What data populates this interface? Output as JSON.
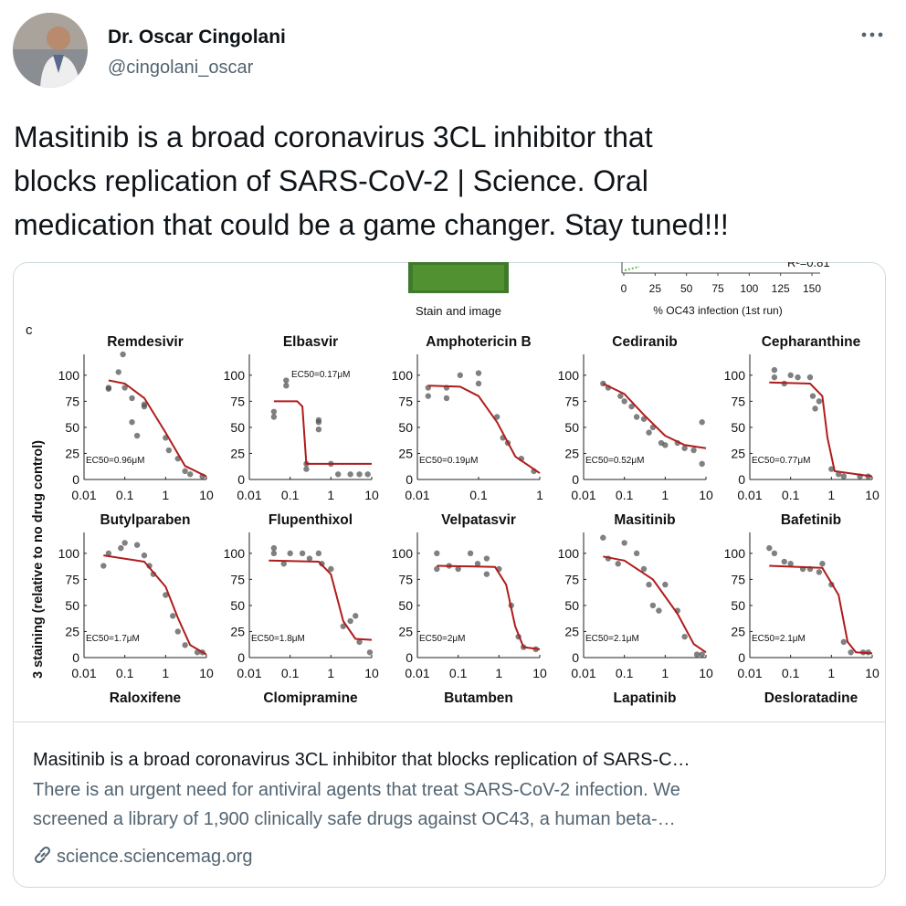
{
  "header": {
    "name": "Dr. Oscar Cingolani",
    "handle": "@cingolani_oscar"
  },
  "tweet": {
    "lines": [
      "Masitinib is a broad coronavirus 3CL inhibitor that",
      "blocks replication of SARS-CoV-2 | Science. Oral",
      "medication that could be a game changer. Stay tuned!!!"
    ]
  },
  "figure": {
    "top_caption": "Stain and image",
    "top_plot": {
      "ticks": [
        0,
        25,
        50,
        75,
        100,
        125,
        150
      ],
      "xlabel": "% OC43 infection (1st run)",
      "stat": "R²=0.81"
    },
    "panel_letter": "c",
    "ylabel": "3 staining (relative to no drug control)",
    "yticks": [
      0,
      25,
      50,
      75,
      100
    ],
    "ylim": [
      0,
      120
    ],
    "log_x": true,
    "panels": [
      {
        "title": "Remdesivir",
        "ec50": "EC50=0.96μM",
        "xlim": [
          0.01,
          10
        ],
        "xticks": [
          0.01,
          0.1,
          1,
          10
        ],
        "points": [
          [
            0.04,
            87
          ],
          [
            0.04,
            88
          ],
          [
            0.07,
            103
          ],
          [
            0.09,
            120
          ],
          [
            0.1,
            88
          ],
          [
            0.15,
            78
          ],
          [
            0.15,
            55
          ],
          [
            0.2,
            42
          ],
          [
            0.3,
            72
          ],
          [
            0.3,
            70
          ],
          [
            1,
            40
          ],
          [
            1.2,
            28
          ],
          [
            2,
            20
          ],
          [
            3,
            8
          ],
          [
            4,
            5
          ],
          [
            8,
            3
          ]
        ],
        "curve": [
          [
            0.04,
            95
          ],
          [
            0.1,
            92
          ],
          [
            0.3,
            78
          ],
          [
            1,
            45
          ],
          [
            3,
            13
          ],
          [
            10,
            3
          ]
        ]
      },
      {
        "title": "Elbasvir",
        "ec50": "EC50=0.17μM",
        "xlim": [
          0.01,
          10
        ],
        "xticks": [
          0.01,
          0.1,
          1,
          10
        ],
        "points": [
          [
            0.04,
            60
          ],
          [
            0.04,
            65
          ],
          [
            0.08,
            90
          ],
          [
            0.08,
            95
          ],
          [
            0.25,
            15
          ],
          [
            0.25,
            10
          ],
          [
            0.5,
            48
          ],
          [
            0.5,
            55
          ],
          [
            0.5,
            57
          ],
          [
            1,
            15
          ],
          [
            1.5,
            5
          ],
          [
            3,
            5
          ],
          [
            5,
            5
          ],
          [
            8,
            5
          ]
        ],
        "curve": [
          [
            0.04,
            75
          ],
          [
            0.15,
            75
          ],
          [
            0.2,
            70
          ],
          [
            0.25,
            15
          ],
          [
            10,
            15
          ]
        ]
      },
      {
        "title": "Amphotericin B",
        "ec50": "EC50=0.19μM",
        "xlim": [
          0.01,
          1
        ],
        "xticks": [
          0.01,
          0.1,
          1
        ],
        "points": [
          [
            0.015,
            80
          ],
          [
            0.015,
            88
          ],
          [
            0.03,
            88
          ],
          [
            0.03,
            78
          ],
          [
            0.05,
            100
          ],
          [
            0.1,
            102
          ],
          [
            0.1,
            92
          ],
          [
            0.2,
            60
          ],
          [
            0.25,
            40
          ],
          [
            0.3,
            35
          ],
          [
            0.5,
            20
          ],
          [
            0.8,
            8
          ]
        ],
        "curve": [
          [
            0.015,
            90
          ],
          [
            0.05,
            89
          ],
          [
            0.1,
            80
          ],
          [
            0.2,
            55
          ],
          [
            0.4,
            22
          ],
          [
            1,
            6
          ]
        ]
      },
      {
        "title": "Cediranib",
        "ec50": "EC50=0.52μM",
        "xlim": [
          0.01,
          10
        ],
        "xticks": [
          0.01,
          0.1,
          1,
          10
        ],
        "points": [
          [
            0.03,
            92
          ],
          [
            0.04,
            88
          ],
          [
            0.08,
            80
          ],
          [
            0.1,
            75
          ],
          [
            0.15,
            70
          ],
          [
            0.2,
            60
          ],
          [
            0.3,
            58
          ],
          [
            0.4,
            45
          ],
          [
            0.5,
            50
          ],
          [
            0.8,
            35
          ],
          [
            1,
            33
          ],
          [
            2,
            35
          ],
          [
            3,
            30
          ],
          [
            5,
            28
          ],
          [
            8,
            15
          ],
          [
            8,
            55
          ]
        ],
        "curve": [
          [
            0.03,
            92
          ],
          [
            0.1,
            82
          ],
          [
            0.3,
            62
          ],
          [
            1,
            42
          ],
          [
            3,
            33
          ],
          [
            10,
            30
          ]
        ]
      },
      {
        "title": "Cepharanthine",
        "ec50": "EC50=0.77μM",
        "xlim": [
          0.01,
          10
        ],
        "xticks": [
          0.01,
          0.1,
          1,
          10
        ],
        "points": [
          [
            0.04,
            105
          ],
          [
            0.04,
            98
          ],
          [
            0.07,
            92
          ],
          [
            0.1,
            100
          ],
          [
            0.15,
            98
          ],
          [
            0.3,
            98
          ],
          [
            0.35,
            80
          ],
          [
            0.4,
            68
          ],
          [
            0.5,
            75
          ],
          [
            1,
            10
          ],
          [
            1.5,
            5
          ],
          [
            2,
            3
          ],
          [
            5,
            3
          ],
          [
            8,
            3
          ]
        ],
        "curve": [
          [
            0.03,
            93
          ],
          [
            0.3,
            92
          ],
          [
            0.6,
            80
          ],
          [
            0.8,
            40
          ],
          [
            1.2,
            8
          ],
          [
            10,
            3
          ]
        ]
      },
      {
        "title": "Butylparaben",
        "ec50": "EC50=1.7μM",
        "xlim": [
          0.01,
          10
        ],
        "xticks": [
          0.01,
          0.1,
          1,
          10
        ],
        "points": [
          [
            0.03,
            88
          ],
          [
            0.04,
            100
          ],
          [
            0.08,
            105
          ],
          [
            0.1,
            110
          ],
          [
            0.2,
            108
          ],
          [
            0.3,
            98
          ],
          [
            0.4,
            88
          ],
          [
            0.5,
            80
          ],
          [
            1,
            60
          ],
          [
            1.5,
            40
          ],
          [
            2,
            25
          ],
          [
            3,
            12
          ],
          [
            6,
            5
          ],
          [
            8,
            5
          ]
        ],
        "curve": [
          [
            0.03,
            98
          ],
          [
            0.3,
            92
          ],
          [
            1,
            68
          ],
          [
            2,
            38
          ],
          [
            4,
            12
          ],
          [
            10,
            3
          ]
        ]
      },
      {
        "title": "Flupenthixol",
        "ec50": "EC50=1.8μM",
        "xlim": [
          0.01,
          10
        ],
        "xticks": [
          0.01,
          0.1,
          1,
          10
        ],
        "points": [
          [
            0.04,
            105
          ],
          [
            0.04,
            100
          ],
          [
            0.07,
            90
          ],
          [
            0.1,
            100
          ],
          [
            0.2,
            100
          ],
          [
            0.3,
            95
          ],
          [
            0.5,
            100
          ],
          [
            0.6,
            90
          ],
          [
            1,
            85
          ],
          [
            2,
            30
          ],
          [
            3,
            35
          ],
          [
            4,
            40
          ],
          [
            5,
            15
          ],
          [
            9,
            5
          ]
        ],
        "curve": [
          [
            0.03,
            93
          ],
          [
            0.5,
            92
          ],
          [
            1,
            80
          ],
          [
            2,
            35
          ],
          [
            4,
            18
          ],
          [
            10,
            17
          ]
        ]
      },
      {
        "title": "Velpatasvir",
        "ec50": "EC50=2μM",
        "xlim": [
          0.01,
          10
        ],
        "xticks": [
          0.01,
          0.1,
          1,
          10
        ],
        "points": [
          [
            0.03,
            100
          ],
          [
            0.03,
            85
          ],
          [
            0.06,
            88
          ],
          [
            0.1,
            85
          ],
          [
            0.2,
            100
          ],
          [
            0.3,
            90
          ],
          [
            0.5,
            80
          ],
          [
            0.5,
            95
          ],
          [
            1,
            85
          ],
          [
            2,
            50
          ],
          [
            3,
            20
          ],
          [
            4,
            10
          ],
          [
            8,
            8
          ]
        ],
        "curve": [
          [
            0.03,
            88
          ],
          [
            0.8,
            87
          ],
          [
            1.5,
            70
          ],
          [
            2.5,
            30
          ],
          [
            4,
            10
          ],
          [
            10,
            8
          ]
        ]
      },
      {
        "title": "Masitinib",
        "ec50": "EC50=2.1μM",
        "xlim": [
          0.01,
          10
        ],
        "xticks": [
          0.01,
          0.1,
          1,
          10
        ],
        "points": [
          [
            0.03,
            115
          ],
          [
            0.04,
            95
          ],
          [
            0.07,
            90
          ],
          [
            0.1,
            110
          ],
          [
            0.2,
            100
          ],
          [
            0.3,
            85
          ],
          [
            0.4,
            70
          ],
          [
            0.5,
            50
          ],
          [
            0.7,
            45
          ],
          [
            1,
            70
          ],
          [
            2,
            45
          ],
          [
            3,
            20
          ],
          [
            6,
            3
          ],
          [
            8,
            3
          ]
        ],
        "curve": [
          [
            0.03,
            97
          ],
          [
            0.1,
            93
          ],
          [
            0.5,
            75
          ],
          [
            2,
            42
          ],
          [
            5,
            13
          ],
          [
            10,
            5
          ]
        ]
      },
      {
        "title": "Bafetinib",
        "ec50": "EC50=2.1μM",
        "xlim": [
          0.01,
          10
        ],
        "xticks": [
          0.01,
          0.1,
          1,
          10
        ],
        "points": [
          [
            0.03,
            105
          ],
          [
            0.04,
            100
          ],
          [
            0.07,
            92
          ],
          [
            0.1,
            90
          ],
          [
            0.2,
            85
          ],
          [
            0.3,
            85
          ],
          [
            0.5,
            82
          ],
          [
            0.6,
            90
          ],
          [
            1,
            70
          ],
          [
            2,
            15
          ],
          [
            3,
            5
          ],
          [
            6,
            5
          ],
          [
            8,
            5
          ]
        ],
        "curve": [
          [
            0.03,
            88
          ],
          [
            0.6,
            86
          ],
          [
            1.5,
            60
          ],
          [
            2.5,
            15
          ],
          [
            4,
            5
          ],
          [
            10,
            4
          ]
        ]
      }
    ],
    "bottom_titles": [
      "Raloxifene",
      "Clomipramine",
      "Butamben",
      "Lapatinib",
      "Desloratadine"
    ]
  },
  "card": {
    "title": "Masitinib is a broad coronavirus 3CL inhibitor that blocks replication of SARS-C…",
    "description": [
      "There is an urgent need for antiviral agents that treat SARS-CoV-2 infection. We",
      "screened a library of 1,900 clinically safe drugs against OC43, a human beta-…"
    ],
    "link": "science.sciencemag.org"
  }
}
